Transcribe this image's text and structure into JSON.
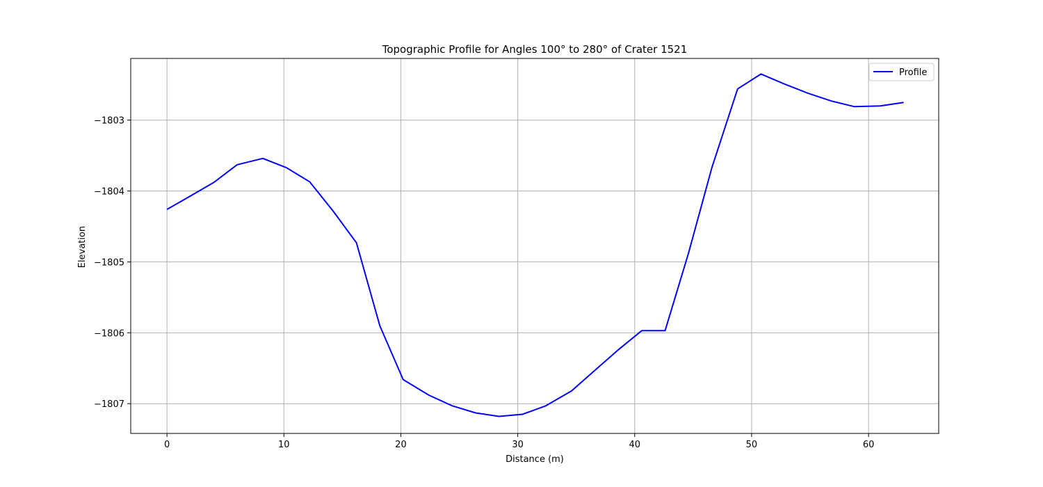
{
  "chart_data": {
    "type": "line",
    "title": "Topographic Profile for Angles 100° to 280° of Crater 1521",
    "xlabel": "Distance (m)",
    "ylabel": "Elevation",
    "xlim": [
      -3.1,
      66.0
    ],
    "ylim": [
      -1807.42,
      -1802.13
    ],
    "xticks": [
      0,
      10,
      20,
      30,
      40,
      50,
      60
    ],
    "xtick_labels": [
      "0",
      "10",
      "20",
      "30",
      "40",
      "50",
      "60"
    ],
    "yticks": [
      -1803,
      -1804,
      -1805,
      -1806,
      -1807
    ],
    "ytick_labels": [
      "−1803",
      "−1804",
      "−1805",
      "−1806",
      "−1807"
    ],
    "grid": true,
    "legend": {
      "position": "top-right"
    },
    "series": [
      {
        "name": "Profile",
        "color": "#0000ff",
        "x": [
          0,
          2.0,
          4.0,
          6.0,
          8.2,
          10.2,
          12.2,
          14.2,
          16.2,
          18.2,
          20.2,
          22.4,
          24.4,
          26.4,
          28.4,
          30.4,
          32.4,
          34.6,
          36.6,
          38.6,
          40.6,
          42.6,
          44.6,
          46.6,
          48.8,
          50.8,
          52.8,
          54.8,
          56.8,
          58.8,
          61.0,
          63.0
        ],
        "y": [
          -1804.26,
          -1804.07,
          -1803.88,
          -1803.63,
          -1803.54,
          -1803.67,
          -1803.87,
          -1804.28,
          -1804.73,
          -1805.9,
          -1806.66,
          -1806.88,
          -1807.03,
          -1807.13,
          -1807.18,
          -1807.15,
          -1807.03,
          -1806.82,
          -1806.53,
          -1806.24,
          -1805.97,
          -1805.97,
          -1804.88,
          -1803.67,
          -1802.56,
          -1802.35,
          -1802.49,
          -1802.62,
          -1802.73,
          -1802.81,
          -1802.8,
          -1802.75
        ]
      }
    ]
  }
}
